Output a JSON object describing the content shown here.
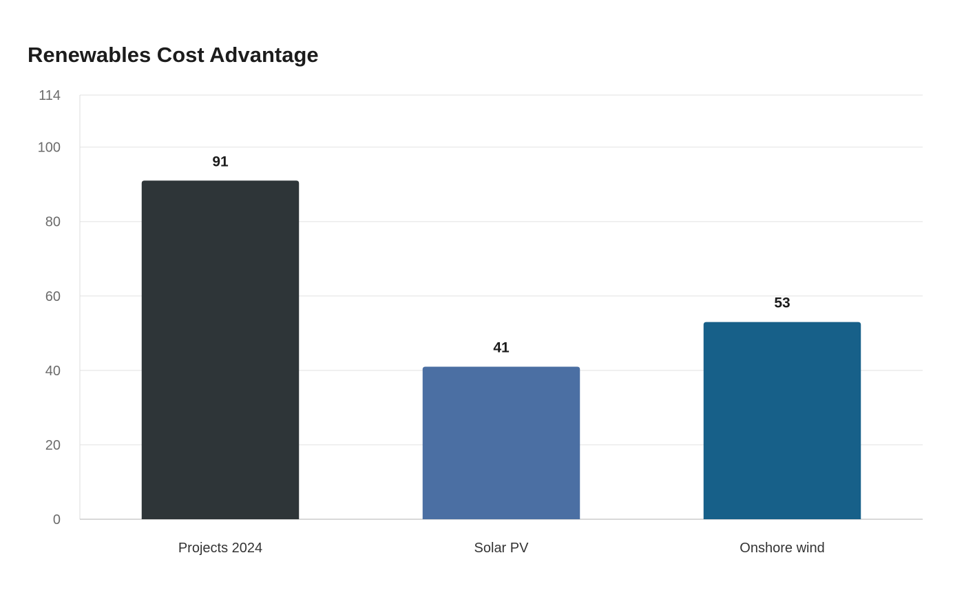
{
  "chart_data": {
    "type": "bar",
    "title": "Renewables Cost Advantage",
    "xlabel": "",
    "ylabel": "",
    "categories": [
      "Projects 2024",
      "Solar PV",
      "Onshore wind"
    ],
    "values": [
      91,
      41,
      53
    ],
    "bar_colors": [
      "#2e3538",
      "#4b6fa3",
      "#176089"
    ],
    "ylim": [
      0,
      114
    ],
    "yticks": [
      0,
      20,
      40,
      60,
      80,
      100,
      114
    ],
    "grid": true,
    "legend": "none"
  }
}
